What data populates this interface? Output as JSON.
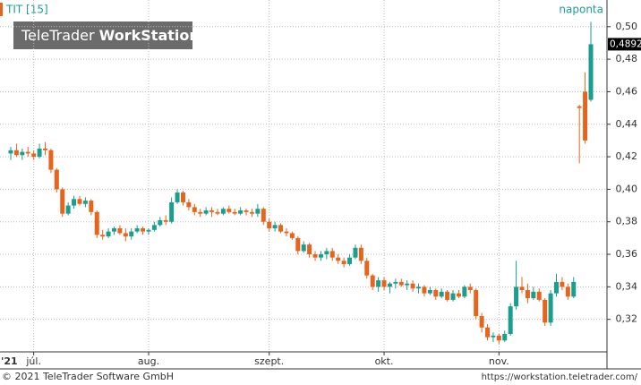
{
  "chart_data": {
    "type": "candlestick",
    "title": "TIT [15]",
    "period": "naponta",
    "logo": {
      "part1": "TeleTrader",
      "part2": "WorkStation"
    },
    "footer_left": "© 2021 TeleTrader Software GmbH",
    "footer_right": "https://workstation.teletrader.com/",
    "year_label": "'21",
    "categories": [
      null,
      null,
      null,
      null,
      "júl.",
      null,
      null,
      null,
      null,
      null,
      null,
      null,
      null,
      null,
      null,
      null,
      null,
      null,
      null,
      null,
      null,
      null,
      null,
      null,
      "aug.",
      null,
      null,
      null,
      null,
      null,
      null,
      null,
      null,
      null,
      null,
      null,
      null,
      null,
      null,
      null,
      null,
      null,
      null,
      null,
      null,
      "szept.",
      null,
      null,
      null,
      null,
      null,
      null,
      null,
      null,
      null,
      null,
      null,
      null,
      null,
      null,
      null,
      null,
      null,
      null,
      null,
      "okt.",
      null,
      null,
      null,
      null,
      null,
      null,
      null,
      null,
      null,
      null,
      null,
      null,
      null,
      null,
      null,
      null,
      null,
      null,
      null,
      "nov.",
      null,
      null,
      null,
      null,
      null,
      null,
      null,
      null,
      null,
      null,
      null,
      null,
      null,
      null,
      null,
      null
    ],
    "up_color": "#1a9e8f",
    "down_color": "#e8641c",
    "grid": true,
    "ylim": [
      0.3,
      0.512
    ],
    "yticks": [
      {
        "value": 0.32,
        "label": "0,32"
      },
      {
        "value": 0.34,
        "label": "0,34"
      },
      {
        "value": 0.36,
        "label": "0,36"
      },
      {
        "value": 0.38,
        "label": "0,38"
      },
      {
        "value": 0.4,
        "label": "0,40"
      },
      {
        "value": 0.42,
        "label": "0,42"
      },
      {
        "value": 0.44,
        "label": "0,44"
      },
      {
        "value": 0.46,
        "label": "0,46"
      },
      {
        "value": 0.48,
        "label": "0,48"
      },
      {
        "value": 0.5,
        "label": "0,50"
      }
    ],
    "last_price": {
      "value": 0.4892,
      "label": "0,4892"
    },
    "series": [
      {
        "name": "TIT",
        "open": [
          0.422,
          0.424,
          0.421,
          0.423,
          0.422,
          0.42,
          0.425,
          0.424,
          0.412,
          0.4,
          0.385,
          0.39,
          0.394,
          0.391,
          0.393,
          0.386,
          0.372,
          0.371,
          0.374,
          0.376,
          0.373,
          0.371,
          0.374,
          0.376,
          0.374,
          0.375,
          0.378,
          0.381,
          0.38,
          0.392,
          0.398,
          0.392,
          0.389,
          0.386,
          0.385,
          0.387,
          0.386,
          0.385,
          0.388,
          0.386,
          0.385,
          0.387,
          0.386,
          0.385,
          0.388,
          0.38,
          0.376,
          0.378,
          0.374,
          0.373,
          0.37,
          0.362,
          0.366,
          0.36,
          0.358,
          0.36,
          0.362,
          0.358,
          0.356,
          0.354,
          0.358,
          0.364,
          0.356,
          0.347,
          0.34,
          0.344,
          0.34,
          0.342,
          0.343,
          0.341,
          0.342,
          0.339,
          0.34,
          0.336,
          0.338,
          0.334,
          0.337,
          0.332,
          0.336,
          0.334,
          0.34,
          0.338,
          0.322,
          0.315,
          0.309,
          0.31,
          0.307,
          0.311,
          0.328,
          0.34,
          0.338,
          0.333,
          0.337,
          0.332,
          0.318,
          0.336,
          0.343,
          0.34,
          0.334,
          0.451,
          0.46,
          0.455
        ],
        "high": [
          0.426,
          0.428,
          0.425,
          0.426,
          0.424,
          0.428,
          0.429,
          0.425,
          0.413,
          0.401,
          0.392,
          0.396,
          0.396,
          0.395,
          0.394,
          0.387,
          0.375,
          0.376,
          0.377,
          0.378,
          0.376,
          0.376,
          0.378,
          0.377,
          0.376,
          0.38,
          0.383,
          0.384,
          0.395,
          0.4,
          0.399,
          0.394,
          0.391,
          0.388,
          0.389,
          0.389,
          0.388,
          0.389,
          0.39,
          0.388,
          0.389,
          0.388,
          0.388,
          0.391,
          0.389,
          0.382,
          0.38,
          0.379,
          0.376,
          0.374,
          0.371,
          0.368,
          0.367,
          0.362,
          0.362,
          0.364,
          0.364,
          0.36,
          0.358,
          0.36,
          0.366,
          0.366,
          0.358,
          0.348,
          0.346,
          0.346,
          0.343,
          0.345,
          0.345,
          0.344,
          0.344,
          0.342,
          0.341,
          0.34,
          0.339,
          0.339,
          0.338,
          0.338,
          0.338,
          0.341,
          0.342,
          0.339,
          0.324,
          0.317,
          0.312,
          0.311,
          0.313,
          0.33,
          0.356,
          0.346,
          0.342,
          0.34,
          0.339,
          0.333,
          0.338,
          0.348,
          0.346,
          0.342,
          0.346,
          0.452,
          0.472,
          0.503
        ],
        "low": [
          0.418,
          0.42,
          0.418,
          0.42,
          0.418,
          0.419,
          0.421,
          0.41,
          0.398,
          0.383,
          0.384,
          0.388,
          0.39,
          0.389,
          0.384,
          0.37,
          0.369,
          0.37,
          0.372,
          0.372,
          0.368,
          0.369,
          0.373,
          0.372,
          0.372,
          0.374,
          0.377,
          0.378,
          0.379,
          0.391,
          0.39,
          0.387,
          0.384,
          0.383,
          0.384,
          0.383,
          0.384,
          0.384,
          0.385,
          0.384,
          0.384,
          0.384,
          0.383,
          0.383,
          0.378,
          0.374,
          0.374,
          0.373,
          0.371,
          0.369,
          0.36,
          0.361,
          0.358,
          0.356,
          0.356,
          0.357,
          0.356,
          0.354,
          0.352,
          0.353,
          0.357,
          0.354,
          0.345,
          0.338,
          0.337,
          0.338,
          0.336,
          0.339,
          0.34,
          0.338,
          0.337,
          0.336,
          0.334,
          0.335,
          0.332,
          0.333,
          0.331,
          0.331,
          0.333,
          0.333,
          0.336,
          0.32,
          0.312,
          0.307,
          0.306,
          0.305,
          0.306,
          0.31,
          0.326,
          0.336,
          0.33,
          0.332,
          0.331,
          0.316,
          0.316,
          0.334,
          0.338,
          0.332,
          0.333,
          0.416,
          0.428,
          0.454
        ],
        "close": [
          0.424,
          0.421,
          0.423,
          0.422,
          0.42,
          0.425,
          0.424,
          0.412,
          0.4,
          0.385,
          0.39,
          0.394,
          0.391,
          0.393,
          0.386,
          0.372,
          0.371,
          0.374,
          0.376,
          0.373,
          0.371,
          0.374,
          0.376,
          0.374,
          0.375,
          0.378,
          0.381,
          0.38,
          0.392,
          0.398,
          0.392,
          0.389,
          0.386,
          0.385,
          0.387,
          0.386,
          0.385,
          0.388,
          0.386,
          0.385,
          0.387,
          0.386,
          0.385,
          0.388,
          0.38,
          0.376,
          0.378,
          0.374,
          0.373,
          0.37,
          0.362,
          0.366,
          0.36,
          0.358,
          0.36,
          0.362,
          0.358,
          0.356,
          0.354,
          0.358,
          0.364,
          0.356,
          0.347,
          0.34,
          0.344,
          0.34,
          0.342,
          0.343,
          0.341,
          0.342,
          0.339,
          0.34,
          0.336,
          0.338,
          0.334,
          0.337,
          0.332,
          0.336,
          0.334,
          0.34,
          0.338,
          0.322,
          0.315,
          0.309,
          0.31,
          0.307,
          0.311,
          0.328,
          0.34,
          0.338,
          0.333,
          0.337,
          0.332,
          0.318,
          0.336,
          0.343,
          0.34,
          0.334,
          0.343,
          0.45,
          0.43,
          0.4892
        ]
      }
    ]
  }
}
